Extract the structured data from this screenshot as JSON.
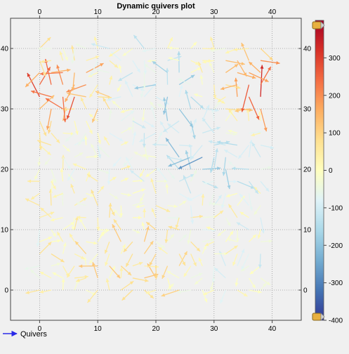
{
  "chart_data": {
    "type": "quiver",
    "title": "Dynamic quivers plot",
    "xlim": [
      -5,
      45
    ],
    "ylim": [
      -5,
      45
    ],
    "x_ticks": [
      0,
      10,
      20,
      30,
      40
    ],
    "y_ticks": [
      0,
      10,
      20,
      30,
      40
    ],
    "grid": true,
    "legend": {
      "label": "Quivers",
      "color": "#2a2ae8",
      "position": "bottom-left"
    },
    "colorbar": {
      "range": [
        -400,
        400
      ],
      "ticks": [
        -400,
        -300,
        -200,
        -100,
        0,
        100,
        200,
        300
      ],
      "colormap": "RdYlBu_r",
      "stops": [
        "#313695",
        "#4575b4",
        "#74add1",
        "#abd9e9",
        "#e0f3f8",
        "#ffffbf",
        "#fee090",
        "#fdae61",
        "#f46d43",
        "#d73027",
        "#a50026"
      ]
    },
    "grid_spacing": 2,
    "x_count": 20,
    "y_count": 21
  }
}
